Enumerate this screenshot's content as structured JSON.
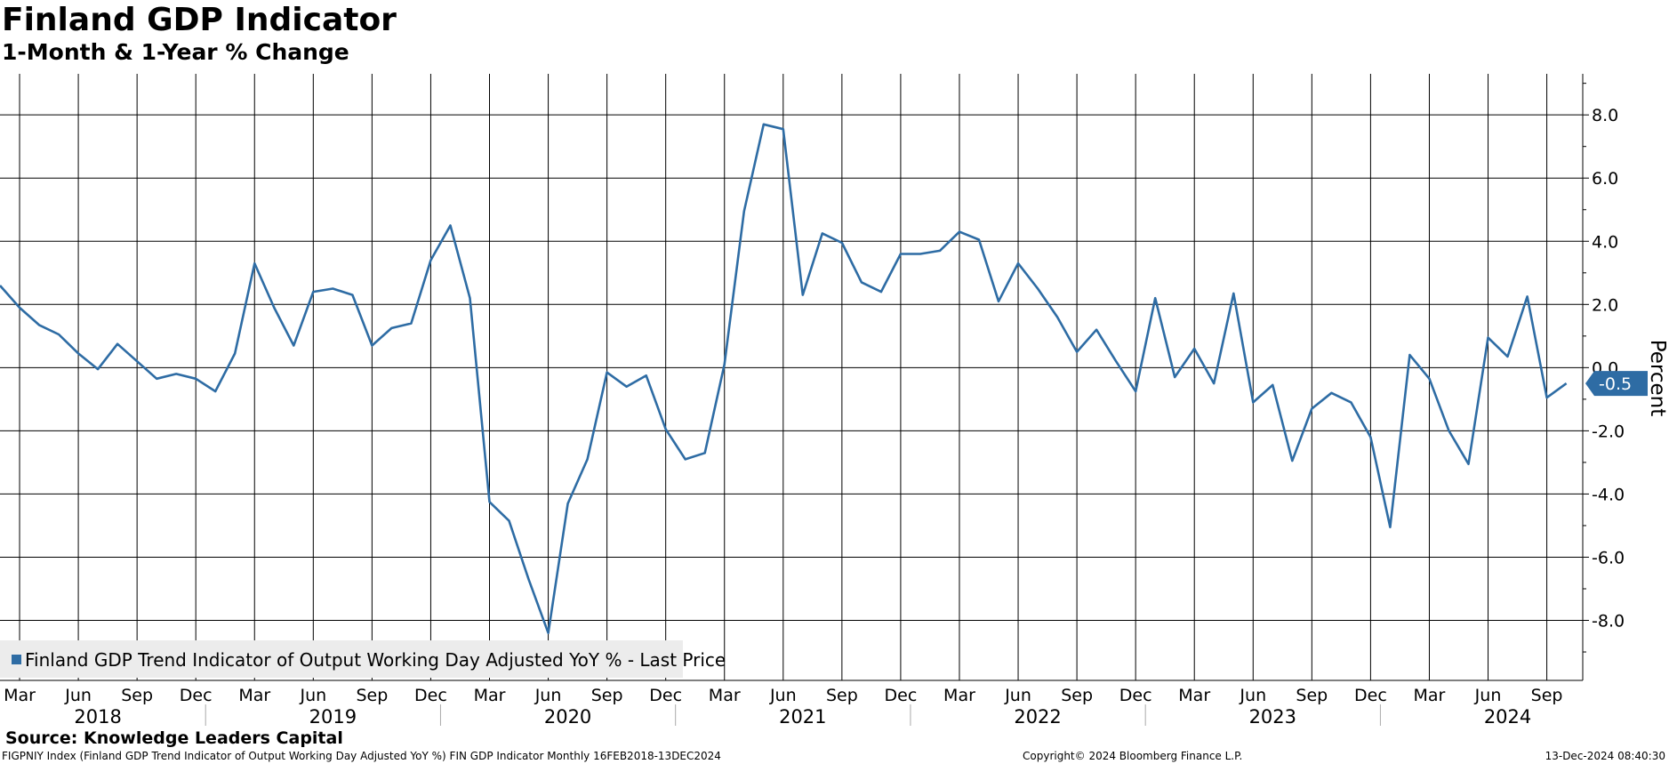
{
  "header": {
    "title": "Finland GDP Indicator",
    "subtitle": "1-Month & 1-Year % Change"
  },
  "footer": {
    "source": "Source: Knowledge Leaders Capital",
    "description": "FIGPNIY Index (Finland GDP Trend Indicator of Output Working Day Adjusted YoY %) FIN GDP Indicator  Monthly 16FEB2018-13DEC2024",
    "copyright": "Copyright© 2024 Bloomberg Finance L.P.",
    "timestamp": "13-Dec-2024 08:40:30"
  },
  "colors": {
    "line": "#2e6ca4",
    "grid": "#000000",
    "legend_bg": "#ececec",
    "last_label_bg": "#2e6ca4"
  },
  "chart_data": {
    "type": "line",
    "title": "Finland GDP Indicator",
    "subtitle": "1-Month & 1-Year % Change",
    "ylabel": "Percent",
    "ylim": [
      -9.9,
      9.3
    ],
    "yticks": [
      8.0,
      6.0,
      4.0,
      2.0,
      0.0,
      -2.0,
      -4.0,
      -6.0,
      -8.0
    ],
    "ytick_labels": [
      "8.0",
      "6.0",
      "4.0",
      "2.0",
      "0.0",
      "-2.0",
      "-4.0",
      "-6.0",
      "-8.0"
    ],
    "y_axis_side": "right",
    "grid": true,
    "legend_position": "bottom-left",
    "x_start": "2018-02",
    "x_end": "2024-11",
    "month_ticks": [
      {
        "label": "Mar",
        "date": "2018-03"
      },
      {
        "label": "Jun",
        "date": "2018-06"
      },
      {
        "label": "Sep",
        "date": "2018-09"
      },
      {
        "label": "Dec",
        "date": "2018-12"
      },
      {
        "label": "Mar",
        "date": "2019-03"
      },
      {
        "label": "Jun",
        "date": "2019-06"
      },
      {
        "label": "Sep",
        "date": "2019-09"
      },
      {
        "label": "Dec",
        "date": "2019-12"
      },
      {
        "label": "Mar",
        "date": "2020-03"
      },
      {
        "label": "Jun",
        "date": "2020-06"
      },
      {
        "label": "Sep",
        "date": "2020-09"
      },
      {
        "label": "Dec",
        "date": "2020-12"
      },
      {
        "label": "Mar",
        "date": "2021-03"
      },
      {
        "label": "Jun",
        "date": "2021-06"
      },
      {
        "label": "Sep",
        "date": "2021-09"
      },
      {
        "label": "Dec",
        "date": "2021-12"
      },
      {
        "label": "Mar",
        "date": "2022-03"
      },
      {
        "label": "Jun",
        "date": "2022-06"
      },
      {
        "label": "Sep",
        "date": "2022-09"
      },
      {
        "label": "Dec",
        "date": "2022-12"
      },
      {
        "label": "Mar",
        "date": "2023-03"
      },
      {
        "label": "Jun",
        "date": "2023-06"
      },
      {
        "label": "Sep",
        "date": "2023-09"
      },
      {
        "label": "Dec",
        "date": "2023-12"
      },
      {
        "label": "Mar",
        "date": "2024-03"
      },
      {
        "label": "Jun",
        "date": "2024-06"
      },
      {
        "label": "Sep",
        "date": "2024-09"
      }
    ],
    "year_labels": [
      {
        "label": "2018",
        "date": "2018-07"
      },
      {
        "label": "2019",
        "date": "2019-07"
      },
      {
        "label": "2020",
        "date": "2020-07"
      },
      {
        "label": "2021",
        "date": "2021-07"
      },
      {
        "label": "2022",
        "date": "2022-07"
      },
      {
        "label": "2023",
        "date": "2023-07"
      },
      {
        "label": "2024",
        "date": "2024-07"
      }
    ],
    "year_separators": [
      "2019-01",
      "2020-01",
      "2021-01",
      "2022-01",
      "2023-01",
      "2024-01"
    ],
    "series": [
      {
        "name": "Finland GDP Trend Indicator of Output Working Day Adjusted YoY % - Last Price",
        "last_value_label": "-0.5",
        "x": [
          "2018-02",
          "2018-03",
          "2018-04",
          "2018-05",
          "2018-06",
          "2018-07",
          "2018-08",
          "2018-09",
          "2018-10",
          "2018-11",
          "2018-12",
          "2019-01",
          "2019-02",
          "2019-03",
          "2019-04",
          "2019-05",
          "2019-06",
          "2019-07",
          "2019-08",
          "2019-09",
          "2019-10",
          "2019-11",
          "2019-12",
          "2020-01",
          "2020-02",
          "2020-03",
          "2020-04",
          "2020-05",
          "2020-06",
          "2020-07",
          "2020-08",
          "2020-09",
          "2020-10",
          "2020-11",
          "2020-12",
          "2021-01",
          "2021-02",
          "2021-03",
          "2021-04",
          "2021-05",
          "2021-06",
          "2021-07",
          "2021-08",
          "2021-09",
          "2021-10",
          "2021-11",
          "2021-12",
          "2022-01",
          "2022-02",
          "2022-03",
          "2022-04",
          "2022-05",
          "2022-06",
          "2022-07",
          "2022-08",
          "2022-09",
          "2022-10",
          "2022-11",
          "2022-12",
          "2023-01",
          "2023-02",
          "2023-03",
          "2023-04",
          "2023-05",
          "2023-06",
          "2023-07",
          "2023-08",
          "2023-09",
          "2023-10",
          "2023-11",
          "2023-12",
          "2024-01",
          "2024-02",
          "2024-03",
          "2024-04",
          "2024-05",
          "2024-06",
          "2024-07",
          "2024-08",
          "2024-09",
          "2024-10"
        ],
        "values": [
          2.6,
          1.9,
          1.35,
          1.05,
          0.45,
          -0.05,
          0.75,
          0.2,
          -0.35,
          -0.2,
          -0.35,
          -0.75,
          0.45,
          3.3,
          1.9,
          0.7,
          2.4,
          2.5,
          2.3,
          0.7,
          1.25,
          1.4,
          3.4,
          4.5,
          2.2,
          -4.25,
          -4.85,
          -6.7,
          -8.4,
          -4.3,
          -2.9,
          -0.15,
          -0.6,
          -0.25,
          -1.95,
          -2.9,
          -2.7,
          0.1,
          4.95,
          7.7,
          7.55,
          2.3,
          4.25,
          3.95,
          2.7,
          2.4,
          3.6,
          3.6,
          3.7,
          4.3,
          4.05,
          2.1,
          3.3,
          2.5,
          1.6,
          0.5,
          1.2,
          0.2,
          -0.75,
          2.2,
          -0.3,
          0.6,
          -0.5,
          2.35,
          -1.1,
          -0.55,
          -2.95,
          -1.3,
          -0.8,
          -1.1,
          -2.2,
          -5.05,
          0.4,
          -0.35,
          -2.0,
          -3.05,
          0.95,
          0.35,
          2.25,
          -0.95,
          -0.5
        ]
      }
    ]
  }
}
